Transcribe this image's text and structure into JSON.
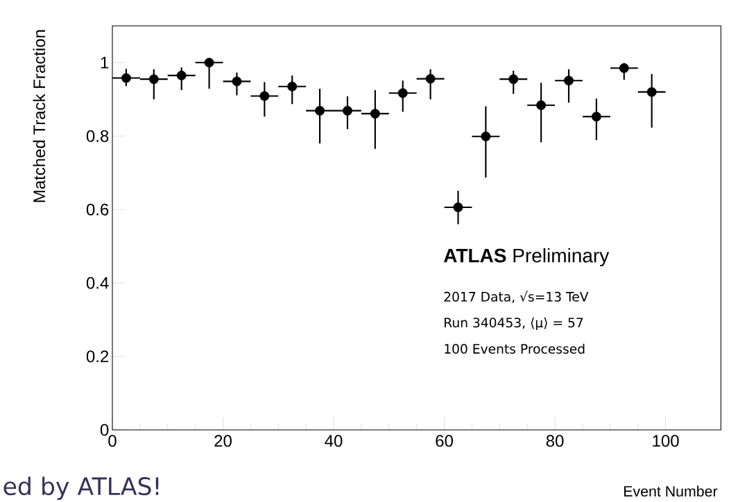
{
  "chart_data": {
    "type": "scatter",
    "xlabel": "Event Number",
    "ylabel": "Matched Track Fraction",
    "x": [
      2.5,
      7.5,
      12.5,
      17.5,
      22.5,
      27.5,
      32.5,
      37.5,
      42.5,
      47.5,
      52.5,
      57.5,
      62.5,
      67.5,
      72.5,
      77.5,
      82.5,
      87.5,
      92.5,
      97.5
    ],
    "values": [
      0.958,
      0.955,
      0.965,
      1.0,
      0.949,
      0.909,
      0.935,
      0.869,
      0.869,
      0.861,
      0.917,
      0.956,
      0.606,
      0.799,
      0.955,
      0.884,
      0.951,
      0.853,
      0.985,
      0.92
    ],
    "errors": [
      [
        0.936,
        0.983
      ],
      [
        0.9,
        0.982
      ],
      [
        0.925,
        0.987
      ],
      [
        0.929,
        1.0
      ],
      [
        0.911,
        0.973
      ],
      [
        0.853,
        0.947
      ],
      [
        0.887,
        0.965
      ],
      [
        0.78,
        0.929
      ],
      [
        0.819,
        0.908
      ],
      [
        0.765,
        0.925
      ],
      [
        0.866,
        0.951
      ],
      [
        0.9,
        0.982
      ],
      [
        0.56,
        0.651
      ],
      [
        0.687,
        0.881
      ],
      [
        0.915,
        0.978
      ],
      [
        0.783,
        0.945
      ],
      [
        0.891,
        0.982
      ],
      [
        0.789,
        0.902
      ],
      [
        0.953,
        0.999
      ],
      [
        0.823,
        0.969
      ]
    ],
    "xerrors": [
      2.5,
      2.5,
      2.5,
      2.5,
      2.5,
      2.5,
      2.5,
      2.5,
      2.5,
      2.5,
      2.5,
      2.5,
      2.5,
      2.5,
      2.5,
      2.5,
      2.5,
      2.5,
      2.5,
      2.5
    ],
    "color": "#000000",
    "marker": "circle",
    "xlim": [
      0,
      110
    ],
    "ylim": [
      0,
      1.1
    ],
    "xticks": [
      0,
      20,
      40,
      60,
      80,
      100
    ],
    "yticks": [
      0,
      0.2,
      0.4,
      0.6,
      0.8,
      {
        "value": 1,
        "label": "1"
      }
    ],
    "annotations": [
      "**ATLAS** Preliminary",
      "2017 Data, √s=13 TeV",
      "Run 340453, ⟨μ⟩ = 57",
      "100 Events Processed",
      "ed by ATLAS!"
    ]
  }
}
